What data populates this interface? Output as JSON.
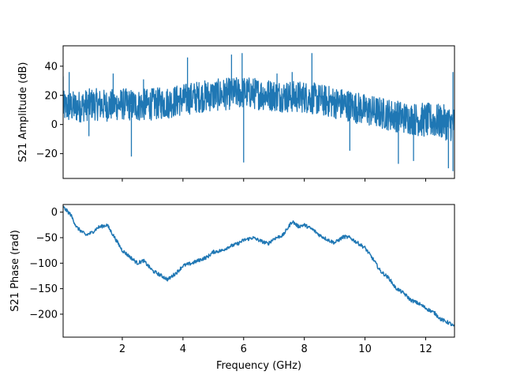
{
  "chart_data": [
    {
      "type": "line",
      "title": "",
      "xlabel": "",
      "ylabel": "S21 Amplitude (dB)",
      "xlim": [
        0.05,
        12.95
      ],
      "ylim": [
        -37,
        54
      ],
      "yticks": [
        -20,
        0,
        20,
        40
      ],
      "xticks": [
        2,
        4,
        6,
        8,
        10,
        12
      ],
      "show_xtick_labels": false,
      "grid": false,
      "series_color": "#1f77b4",
      "envelope": {
        "x": [
          0.05,
          0.5,
          1.0,
          1.5,
          2.0,
          2.5,
          3.0,
          3.5,
          4.0,
          4.5,
          5.0,
          5.5,
          6.0,
          6.5,
          7.0,
          7.5,
          8.0,
          8.5,
          9.0,
          9.5,
          10.0,
          10.5,
          11.0,
          11.5,
          12.0,
          12.5,
          12.95
        ],
        "center": [
          12,
          12,
          14,
          13,
          14,
          13,
          14,
          15,
          17,
          19,
          20,
          21,
          22,
          21,
          20,
          19,
          19,
          17,
          15,
          13,
          10,
          8,
          6,
          4,
          3,
          2,
          0
        ],
        "spread": [
          11,
          11,
          11,
          11,
          11,
          11,
          11,
          11,
          11,
          11,
          11,
          11,
          11,
          11,
          11,
          11,
          11,
          11,
          11,
          11,
          11,
          11,
          11,
          11,
          12,
          12,
          12
        ]
      },
      "spikes": [
        {
          "x": 0.05,
          "y": 33
        },
        {
          "x": 0.25,
          "y": 36
        },
        {
          "x": 0.9,
          "y": -8
        },
        {
          "x": 1.7,
          "y": 35
        },
        {
          "x": 2.3,
          "y": -22
        },
        {
          "x": 2.7,
          "y": 31
        },
        {
          "x": 4.15,
          "y": 46
        },
        {
          "x": 5.6,
          "y": 48
        },
        {
          "x": 5.95,
          "y": 49
        },
        {
          "x": 6.0,
          "y": -26
        },
        {
          "x": 7.1,
          "y": 35
        },
        {
          "x": 7.6,
          "y": 36
        },
        {
          "x": 8.25,
          "y": 49
        },
        {
          "x": 9.5,
          "y": -18
        },
        {
          "x": 11.1,
          "y": -27
        },
        {
          "x": 11.6,
          "y": -25
        },
        {
          "x": 12.9,
          "y": -32
        },
        {
          "x": 12.9,
          "y": 36
        },
        {
          "x": 12.75,
          "y": -30
        }
      ]
    },
    {
      "type": "line",
      "title": "",
      "xlabel": "Frequency (GHz)",
      "ylabel": "S21 Phase (rad)",
      "xlim": [
        0.05,
        12.95
      ],
      "ylim": [
        -245,
        15
      ],
      "yticks": [
        -200,
        -150,
        -100,
        -50,
        0
      ],
      "xticks": [
        2,
        4,
        6,
        8,
        10,
        12
      ],
      "show_xtick_labels": true,
      "grid": false,
      "series_color": "#1f77b4",
      "x": [
        0.05,
        0.3,
        0.5,
        0.8,
        1.0,
        1.2,
        1.5,
        1.7,
        2.0,
        2.3,
        2.5,
        2.7,
        3.0,
        3.3,
        3.5,
        3.8,
        4.0,
        4.3,
        4.5,
        4.8,
        5.0,
        5.3,
        5.5,
        5.8,
        6.0,
        6.3,
        6.5,
        6.8,
        7.0,
        7.3,
        7.6,
        7.8,
        8.0,
        8.3,
        8.5,
        8.8,
        9.0,
        9.3,
        9.5,
        9.8,
        10.0,
        10.3,
        10.5,
        10.8,
        11.0,
        11.3,
        11.5,
        11.8,
        12.0,
        12.3,
        12.5,
        12.8,
        12.95
      ],
      "y": [
        10,
        -5,
        -30,
        -45,
        -40,
        -30,
        -25,
        -45,
        -75,
        -90,
        -100,
        -95,
        -115,
        -125,
        -132,
        -118,
        -105,
        -100,
        -95,
        -88,
        -78,
        -75,
        -68,
        -62,
        -55,
        -50,
        -55,
        -62,
        -52,
        -45,
        -18,
        -28,
        -25,
        -35,
        -45,
        -55,
        -60,
        -48,
        -50,
        -62,
        -70,
        -95,
        -115,
        -130,
        -148,
        -160,
        -172,
        -180,
        -188,
        -198,
        -210,
        -218,
        -225
      ]
    }
  ]
}
